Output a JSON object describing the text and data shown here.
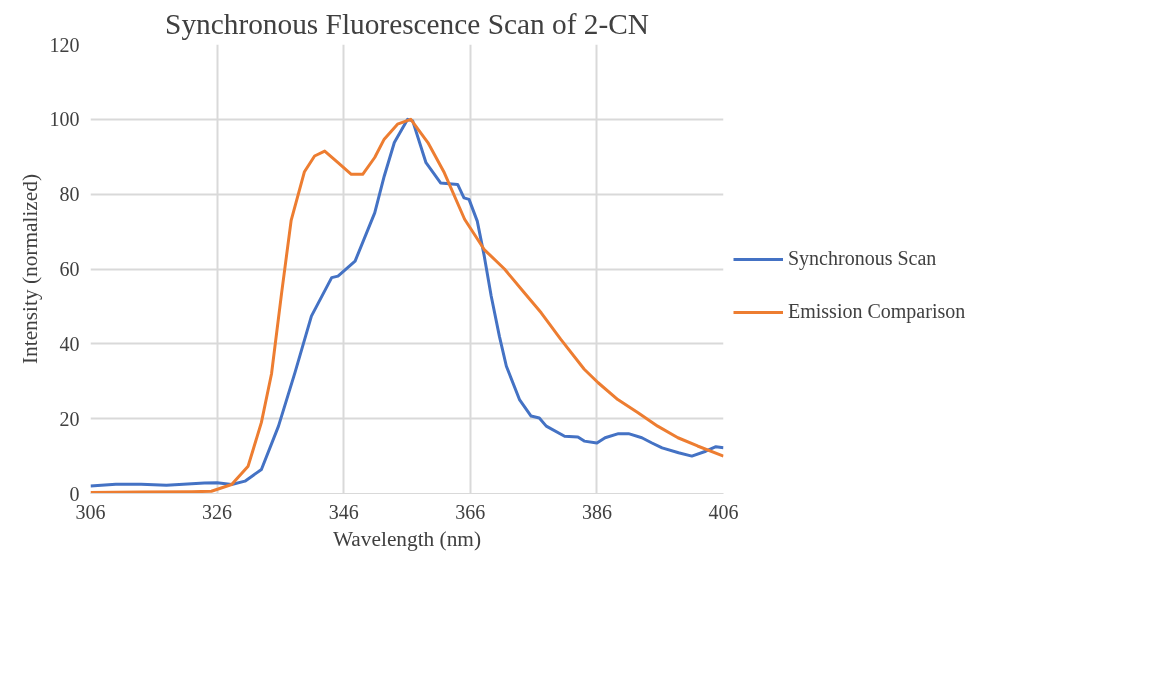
{
  "chart_data": {
    "type": "line",
    "title": "Synchronous Fluorescence Scan of 2-CN",
    "xlabel": "Wavelength (nm)",
    "ylabel": "Intensity (normalized)",
    "xlim": [
      306,
      406
    ],
    "xticks": [
      306,
      326,
      346,
      366,
      386,
      406
    ],
    "ylim": [
      0,
      120
    ],
    "yticks": [
      0,
      20,
      40,
      60,
      80,
      100,
      120
    ],
    "grid": true,
    "legend": "right",
    "line_style": "solid",
    "marker": "none",
    "series": [
      {
        "name": "Synchronous Scan",
        "color": "#4472c4",
        "x": [
          306,
          310,
          314,
          318,
          322,
          324,
          326,
          328.3,
          330.4,
          333,
          335.7,
          338.3,
          340.9,
          344.1,
          345.1,
          347.8,
          350.9,
          352.4,
          354,
          356.1,
          356.9,
          359,
          361.3,
          364,
          365,
          365.8,
          367.1,
          368.2,
          369.3,
          370.6,
          371.7,
          373.8,
          375.6,
          376.9,
          378,
          380.9,
          383,
          384,
          386,
          387.3,
          389.4,
          391,
          393.1,
          394.7,
          396.3,
          398.9,
          401,
          403.2,
          404.8,
          406
        ],
        "values": [
          2,
          2.5,
          2.5,
          2.2,
          2.6,
          2.8,
          2.9,
          2.4,
          3.3,
          6.4,
          18,
          32.3,
          47.4,
          57.7,
          58.1,
          62.1,
          75,
          84.8,
          93.8,
          100,
          99.6,
          88.4,
          83,
          82.6,
          79,
          78.6,
          72.8,
          63.5,
          52.8,
          42,
          34,
          25,
          20.7,
          20.2,
          18,
          15.3,
          15.1,
          14,
          13.5,
          14.9,
          16,
          16,
          14.9,
          13.5,
          12.2,
          10.9,
          10,
          11.3,
          12.5,
          12.2
        ]
      },
      {
        "name": "Emission Comparison",
        "color": "#ed7d31",
        "x": [
          306,
          314,
          322,
          325.1,
          328.3,
          330.9,
          333,
          334.6,
          336.2,
          337.7,
          339.8,
          341.4,
          343,
          345.1,
          347.2,
          349,
          350.9,
          352.4,
          354.5,
          356.6,
          359.3,
          361.9,
          365.1,
          368.2,
          371.4,
          374.5,
          377.2,
          380.3,
          384,
          386.2,
          389.3,
          392.5,
          395.6,
          398.8,
          401.9,
          406
        ],
        "values": [
          0.3,
          0.4,
          0.5,
          0.6,
          2.4,
          7.3,
          19,
          32,
          53.7,
          73,
          86,
          90.2,
          91.5,
          88.4,
          85.3,
          85.3,
          89.8,
          94.7,
          98.7,
          100,
          93.8,
          85.7,
          73.3,
          65.2,
          60,
          53.7,
          48.3,
          41.2,
          33.2,
          29.6,
          25.1,
          21.6,
          18,
          14.9,
          12.7,
          10
        ]
      }
    ]
  }
}
